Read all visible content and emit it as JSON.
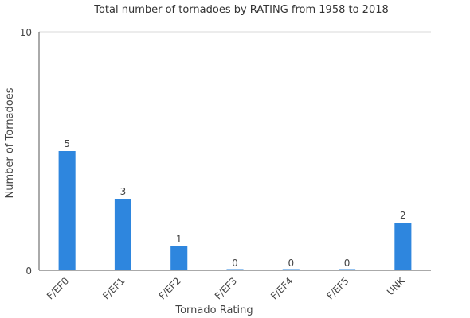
{
  "chart_data": {
    "type": "bar",
    "title": "Total number of tornadoes by RATING from 1958 to 2018",
    "xlabel": "Tornado Rating",
    "ylabel": "Number of Tornadoes",
    "categories": [
      "F/EF0",
      "F/EF1",
      "F/EF2",
      "F/EF3",
      "F/EF4",
      "F/EF5",
      "UNK"
    ],
    "values": [
      5,
      3,
      1,
      0,
      0,
      0,
      2
    ],
    "ylim": [
      0,
      10
    ],
    "yticks": [
      "0",
      "10"
    ],
    "grid": true,
    "legend": "none",
    "bar_color": "#2e86de"
  }
}
